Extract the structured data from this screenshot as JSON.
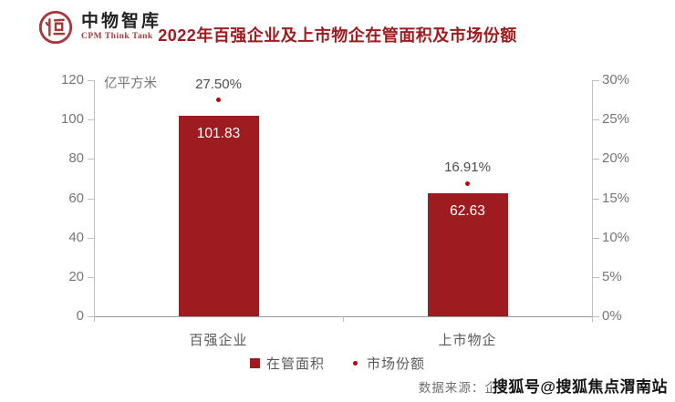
{
  "header": {
    "logo": {
      "name": "中物智库",
      "subtitle": "CPM Think Tank"
    },
    "title": "2022年百强企业及上市物企在管面积及市场份额"
  },
  "chart_data": {
    "type": "bar",
    "title": "2022年百强企业及上市物企在管面积及市场份额",
    "categories": [
      "百强企业",
      "上市物企"
    ],
    "series": [
      {
        "name": "在管面积",
        "type": "bar",
        "axis": "left",
        "values": [
          101.83,
          62.63
        ],
        "value_labels": [
          "101.83",
          "62.63"
        ],
        "color": "#9E1B20"
      },
      {
        "name": "市场份额",
        "type": "point",
        "axis": "right",
        "values": [
          27.5,
          16.91
        ],
        "value_labels": [
          "27.50%",
          "16.91%"
        ],
        "color": "#C00000"
      }
    ],
    "left_axis": {
      "label": "亿平方米",
      "ticks": [
        0,
        20,
        40,
        60,
        80,
        100,
        120
      ],
      "range": [
        0,
        120
      ]
    },
    "right_axis": {
      "ticks": [
        "0%",
        "5%",
        "10%",
        "15%",
        "20%",
        "25%",
        "30%"
      ],
      "range": [
        0,
        30
      ]
    },
    "legend_position": "bottom",
    "grid": false
  },
  "footer": {
    "source_label": "数据来源：企",
    "watermark": "搜狐号@搜狐焦点渭南站"
  },
  "colors": {
    "title": "#9E1B20",
    "bar": "#9E1B20",
    "marker": "#C00000",
    "axis_text": "#767676",
    "label_text": "#595959"
  }
}
